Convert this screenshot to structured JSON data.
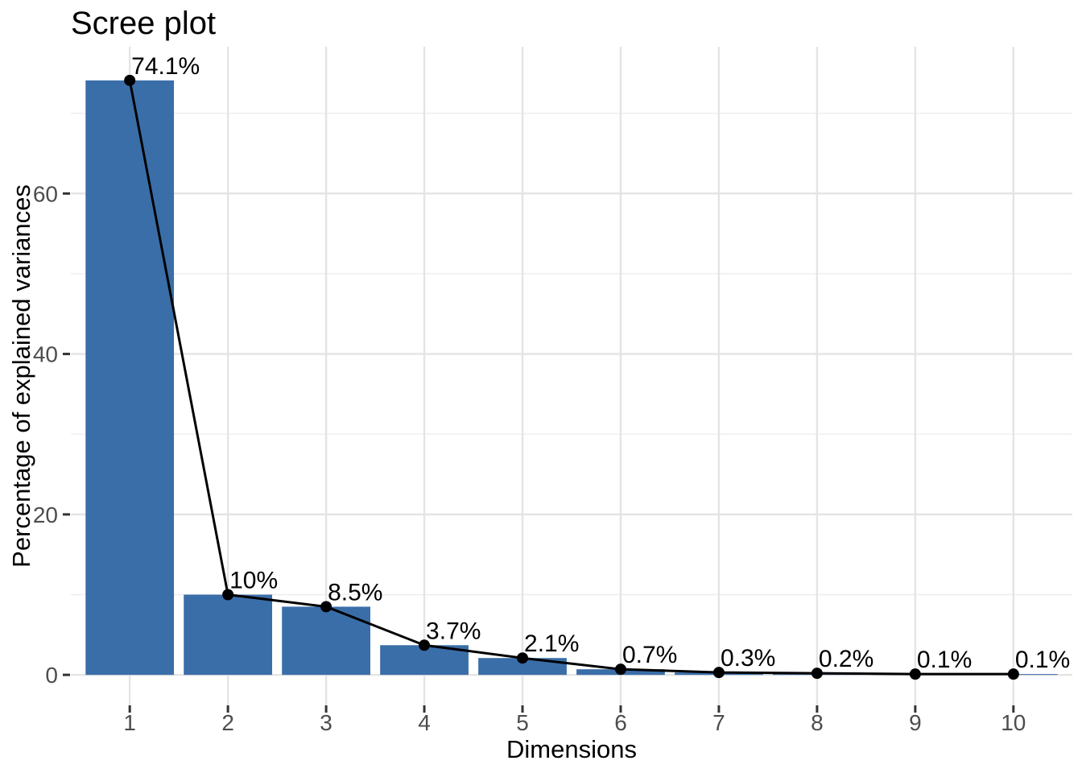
{
  "chart_data": {
    "type": "bar",
    "subtype": "bar-with-line-overlay",
    "title": "Scree plot",
    "xlabel": "Dimensions",
    "ylabel": "Percentage of explained variances",
    "categories": [
      "1",
      "2",
      "3",
      "4",
      "5",
      "6",
      "7",
      "8",
      "9",
      "10"
    ],
    "values": [
      74.1,
      10,
      8.5,
      3.7,
      2.1,
      0.7,
      0.3,
      0.2,
      0.1,
      0.1
    ],
    "point_labels": [
      "74.1%",
      "10%",
      "8.5%",
      "3.7%",
      "2.1%",
      "0.7%",
      "0.3%",
      "0.2%",
      "0.1%",
      "0.1%"
    ],
    "y_major_ticks": [
      0,
      20,
      40,
      60
    ],
    "y_minor_gridlines": [
      10,
      30,
      50,
      70
    ],
    "ylim": [
      -3.8,
      78.3
    ],
    "xlim": [
      0.4,
      10.6
    ],
    "bar_width": 0.9,
    "grid": true,
    "legend": "none",
    "colors": {
      "bar_fill": "#3A6EA8",
      "line": "#000000",
      "point": "#000000",
      "gridline_major": "#E4E4E4",
      "gridline_minor": "#EEEEEE",
      "tick_mark": "#333333",
      "tick_label": "#4D4D4D",
      "text": "#000000",
      "background": "#FFFFFF"
    }
  }
}
